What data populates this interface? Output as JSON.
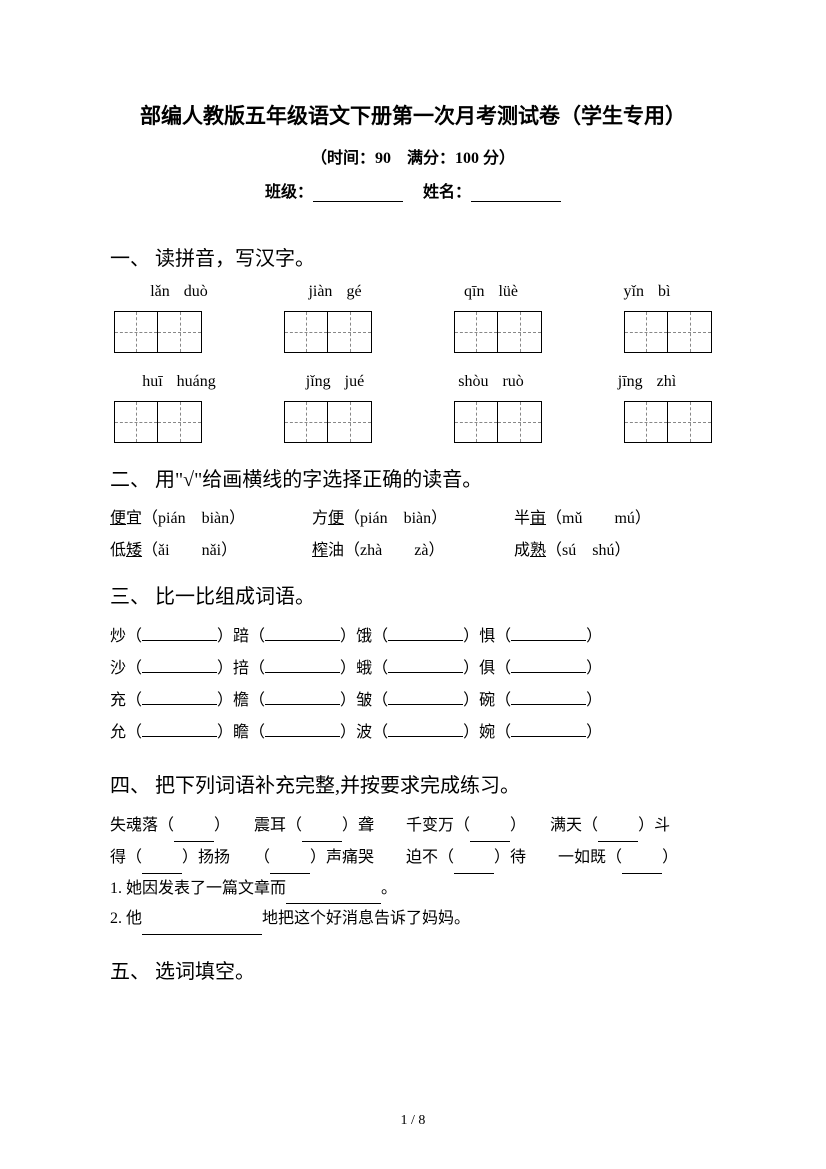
{
  "header": {
    "title": "部编人教版五年级语文下册第一次月考测试卷（学生专用）",
    "subtitle": "（时间：90　满分：100 分）",
    "class_label": "班级：",
    "name_label": "姓名："
  },
  "section1": {
    "title": "一、 读拼音，写汉字。",
    "row1": [
      {
        "p1": "lǎn",
        "p2": "duò"
      },
      {
        "p1": "jiàn",
        "p2": "gé"
      },
      {
        "p1": "qīn",
        "p2": "lüè"
      },
      {
        "p1": "yǐn",
        "p2": "bì"
      }
    ],
    "row2": [
      {
        "p1": "huī",
        "p2": "huáng"
      },
      {
        "p1": "jǐng",
        "p2": "jué"
      },
      {
        "p1": "shòu",
        "p2": "ruò"
      },
      {
        "p1": "jīng",
        "p2": "zhì"
      }
    ]
  },
  "section2": {
    "title": "二、 用\"√\"给画横线的字选择正确的读音。",
    "row1": [
      {
        "word": "便",
        "suffix": "宜",
        "opts": "（pián　biàn）",
        "underline_first": true
      },
      {
        "word": "便",
        "prefix": "方",
        "opts": "（pián　biàn）",
        "underline_last": true
      },
      {
        "word": "亩",
        "prefix": "半",
        "opts": "（mǔ　　mú）",
        "underline_last": true
      }
    ],
    "row2": [
      {
        "word": "矮",
        "prefix": "低",
        "opts": "（ǎi　　nǎi）",
        "underline_last": true
      },
      {
        "word": "榨",
        "suffix": "油",
        "opts": "（zhà　　zà）",
        "underline_first": true
      },
      {
        "word": "熟",
        "prefix": "成",
        "opts": "（sú　shú）",
        "underline_last": true
      }
    ]
  },
  "section3": {
    "title": "三、 比一比组成词语。",
    "rows": [
      [
        "炒",
        "踣",
        "饿",
        "惧"
      ],
      [
        "沙",
        "掊",
        "蛾",
        "俱"
      ],
      [
        "充",
        "檐",
        "皱",
        "碗"
      ],
      [
        "允",
        "瞻",
        "波",
        "婉"
      ]
    ]
  },
  "section4": {
    "title": "四、 把下列词语补充完整,并按要求完成练习。",
    "line1_items": [
      "失魂落（",
      "）　　震耳（",
      "）聋　　千变万（",
      "）　　满天（",
      "）斗"
    ],
    "line2_items": [
      "得（",
      "）扬扬　　（",
      "）声痛哭　　迫不（",
      "）待　　一如既（",
      "）"
    ],
    "sub1": "1. 她因发表了一篇文章而",
    "sub1_end": "。",
    "sub2_a": "2. 他",
    "sub2_b": "地把这个好消息告诉了妈妈。"
  },
  "section5": {
    "title": "五、 选词填空。"
  },
  "footer": {
    "page": "1 / 8"
  }
}
